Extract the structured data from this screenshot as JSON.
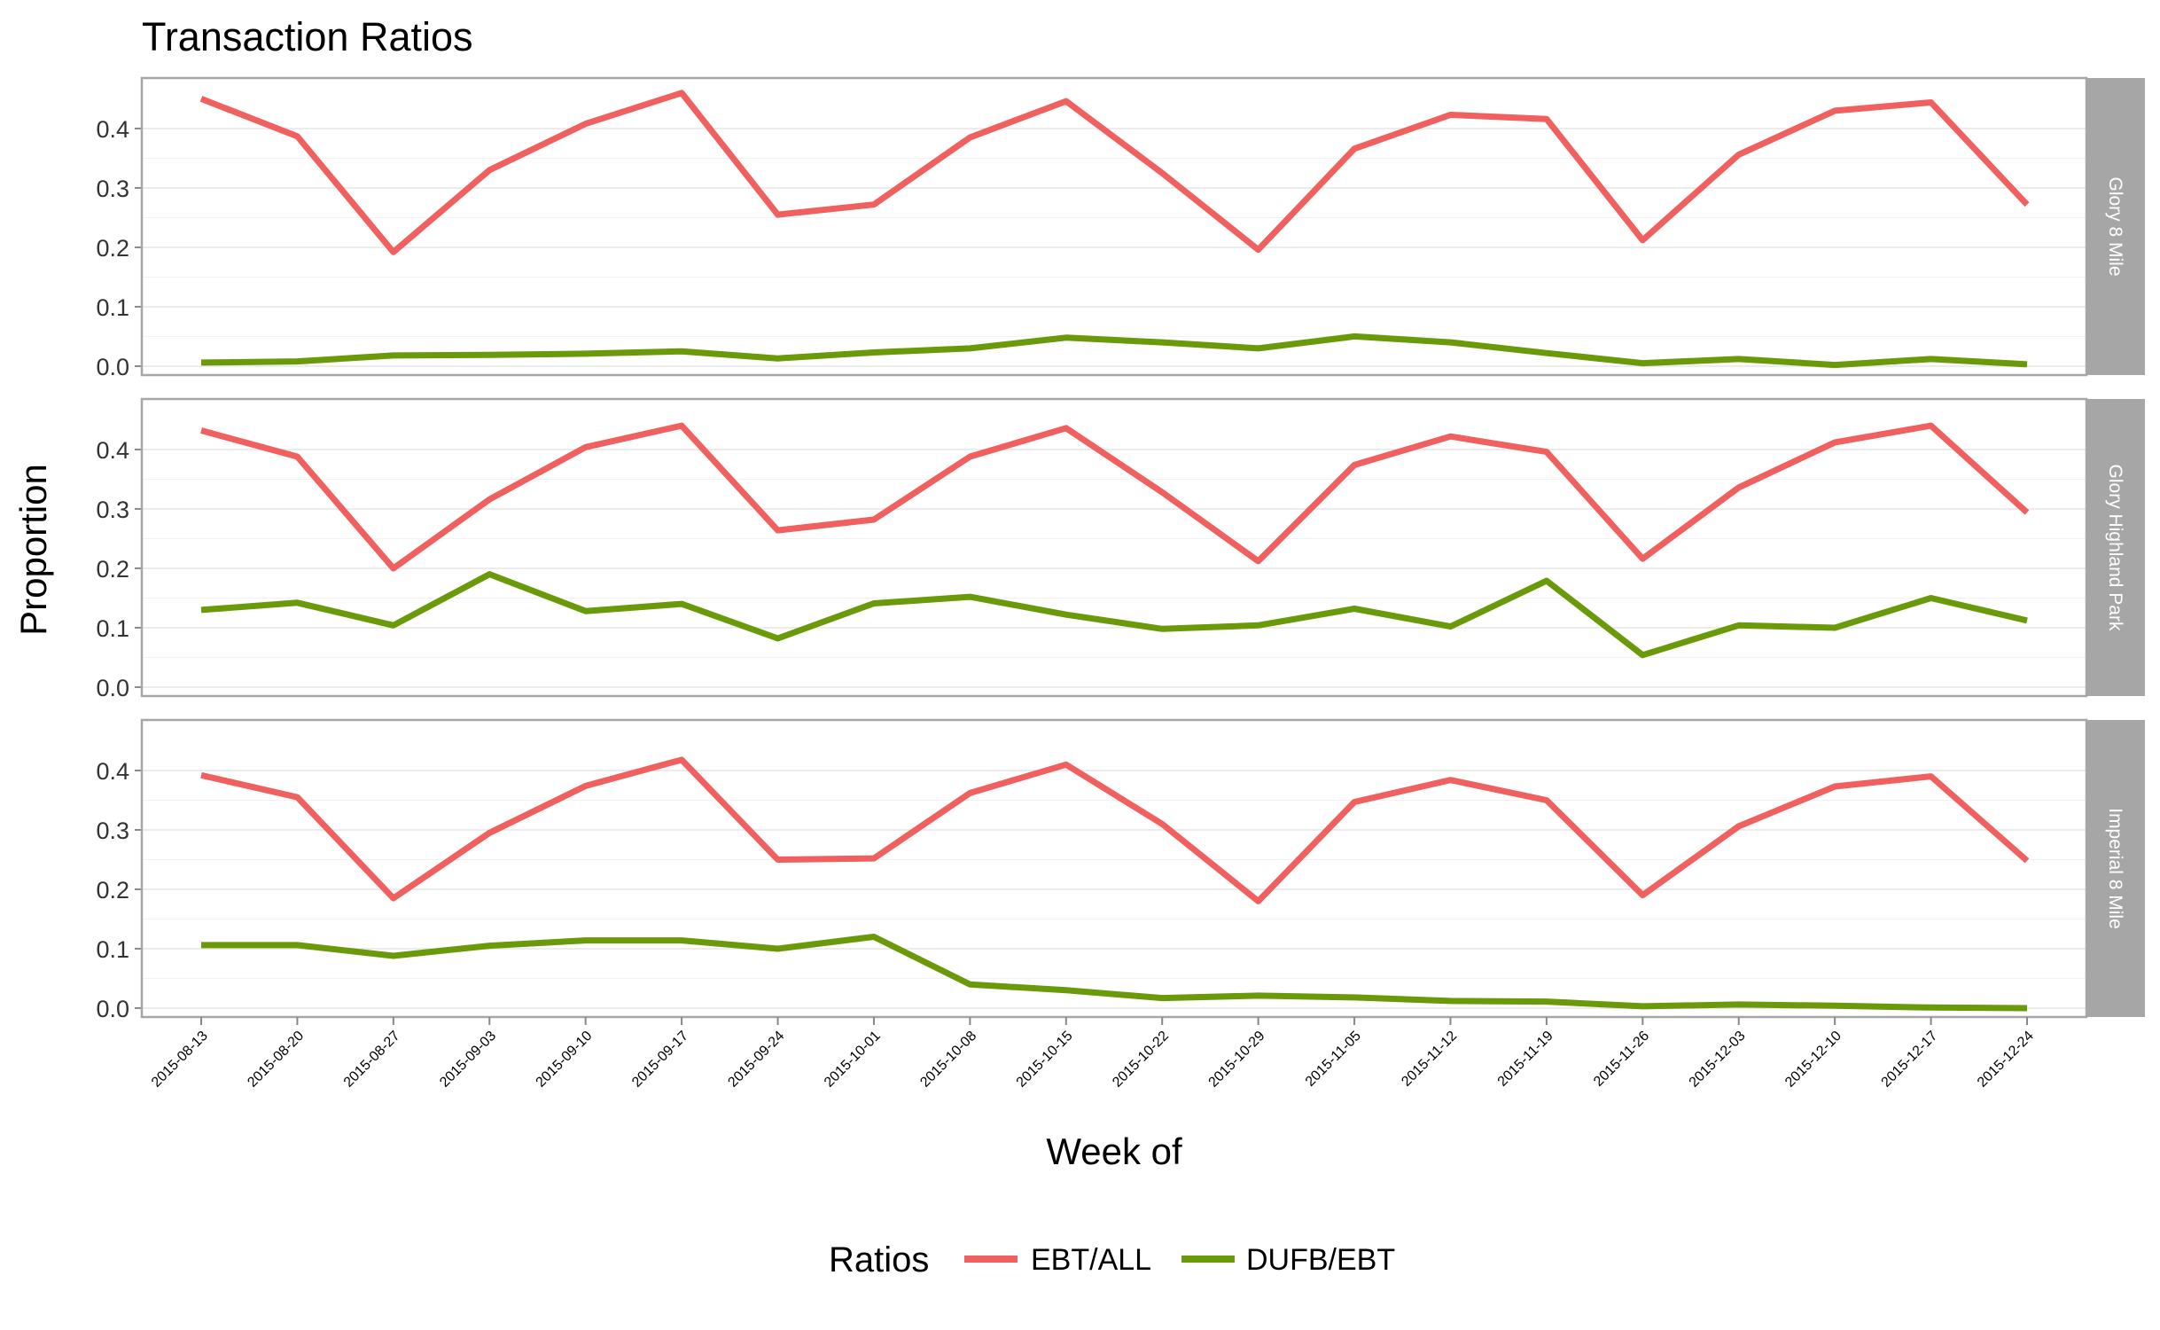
{
  "chart_data": {
    "type": "line",
    "title": "Transaction Ratios",
    "xlabel": "Week of",
    "ylabel": "Proportion",
    "ylim": [
      -0.015,
      0.485
    ],
    "yticks": [
      "0.0",
      "0.1",
      "0.2",
      "0.3",
      "0.4"
    ],
    "x": [
      "2015-08-13",
      "2015-08-20",
      "2015-08-27",
      "2015-09-03",
      "2015-09-10",
      "2015-09-17",
      "2015-09-24",
      "2015-10-01",
      "2015-10-08",
      "2015-10-15",
      "2015-10-22",
      "2015-10-29",
      "2015-11-05",
      "2015-11-12",
      "2015-11-19",
      "2015-11-26",
      "2015-12-03",
      "2015-12-10",
      "2015-12-17",
      "2015-12-24"
    ],
    "legend": {
      "title": "Ratios",
      "position": "bottom",
      "entries": [
        {
          "name": "EBT/ALL",
          "color": "#f0605f"
        },
        {
          "name": "DUFB/EBT",
          "color": "#6a9a0a"
        }
      ]
    },
    "facets": [
      {
        "label": "Glory 8 Mile",
        "series": [
          {
            "name": "EBT/ALL",
            "color": "#f0605f",
            "values": [
              0.45,
              0.387,
              0.192,
              0.33,
              0.408,
              0.46,
              0.255,
              0.272,
              0.385,
              0.446,
              0.325,
              0.196,
              0.366,
              0.423,
              0.416,
              0.212,
              0.356,
              0.43,
              0.444,
              0.272
            ]
          },
          {
            "name": "DUFB/EBT",
            "color": "#6a9a0a",
            "values": [
              0.006,
              0.008,
              0.018,
              0.019,
              0.021,
              0.025,
              0.013,
              0.023,
              0.03,
              0.048,
              0.04,
              0.03,
              0.05,
              0.04,
              0.022,
              0.005,
              0.012,
              0.002,
              0.012,
              0.003
            ]
          }
        ]
      },
      {
        "label": "Glory Highland Park",
        "series": [
          {
            "name": "EBT/ALL",
            "color": "#f0605f",
            "values": [
              0.432,
              0.388,
              0.2,
              0.316,
              0.404,
              0.44,
              0.264,
              0.282,
              0.388,
              0.436,
              0.328,
              0.212,
              0.374,
              0.422,
              0.396,
              0.216,
              0.336,
              0.412,
              0.44,
              0.294
            ]
          },
          {
            "name": "DUFB/EBT",
            "color": "#6a9a0a",
            "values": [
              0.13,
              0.142,
              0.104,
              0.19,
              0.128,
              0.14,
              0.082,
              0.141,
              0.152,
              0.122,
              0.098,
              0.104,
              0.132,
              0.102,
              0.179,
              0.054,
              0.104,
              0.1,
              0.15,
              0.112
            ]
          }
        ]
      },
      {
        "label": "Imperial 8 Mile",
        "series": [
          {
            "name": "EBT/ALL",
            "color": "#f0605f",
            "values": [
              0.392,
              0.355,
              0.185,
              0.295,
              0.374,
              0.418,
              0.25,
              0.252,
              0.362,
              0.41,
              0.31,
              0.18,
              0.347,
              0.384,
              0.35,
              0.19,
              0.306,
              0.373,
              0.39,
              0.248
            ]
          },
          {
            "name": "DUFB/EBT",
            "color": "#6a9a0a",
            "values": [
              0.106,
              0.106,
              0.088,
              0.105,
              0.114,
              0.114,
              0.1,
              0.12,
              0.04,
              0.03,
              0.017,
              0.021,
              0.018,
              0.012,
              0.011,
              0.003,
              0.006,
              0.004,
              0.001,
              0.0
            ]
          }
        ]
      }
    ]
  }
}
